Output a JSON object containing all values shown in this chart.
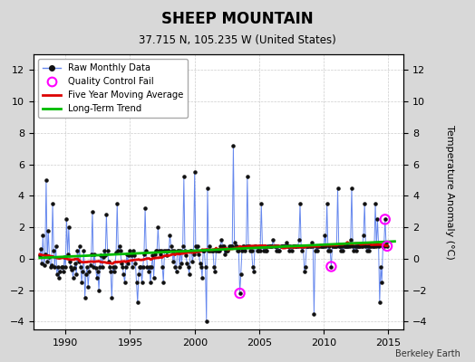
{
  "title": "SHEEP MOUNTAIN",
  "subtitle": "37.715 N, 105.235 W (United States)",
  "ylabel": "Temperature Anomaly (°C)",
  "attribution": "Berkeley Earth",
  "xlim": [
    1987.5,
    2016.2
  ],
  "ylim": [
    -4.5,
    13.0
  ],
  "yticks": [
    -4,
    -2,
    0,
    2,
    4,
    6,
    8,
    10,
    12
  ],
  "xticks": [
    1990,
    1995,
    2000,
    2005,
    2010,
    2015
  ],
  "bg_color": "#d8d8d8",
  "plot_bg_color": "#ffffff",
  "raw_line_color": "#6688ee",
  "raw_dot_color": "#111111",
  "ma_color": "#dd0000",
  "trend_color": "#00bb00",
  "qc_color": "#ff00ff",
  "raw_data": [
    [
      1988.0,
      0.2
    ],
    [
      1988.083,
      0.6
    ],
    [
      1988.167,
      -0.3
    ],
    [
      1988.25,
      1.5
    ],
    [
      1988.333,
      -0.4
    ],
    [
      1988.417,
      0.3
    ],
    [
      1988.5,
      5.0
    ],
    [
      1988.583,
      -0.2
    ],
    [
      1988.667,
      1.8
    ],
    [
      1988.75,
      0.1
    ],
    [
      1988.833,
      -0.5
    ],
    [
      1988.917,
      -0.4
    ],
    [
      1989.0,
      3.5
    ],
    [
      1989.083,
      0.5
    ],
    [
      1989.167,
      -0.5
    ],
    [
      1989.25,
      0.8
    ],
    [
      1989.333,
      -1.0
    ],
    [
      1989.417,
      -0.5
    ],
    [
      1989.5,
      -1.2
    ],
    [
      1989.583,
      -0.8
    ],
    [
      1989.667,
      -0.5
    ],
    [
      1989.75,
      -0.5
    ],
    [
      1989.833,
      -0.8
    ],
    [
      1989.917,
      0.1
    ],
    [
      1990.0,
      -0.5
    ],
    [
      1990.083,
      2.5
    ],
    [
      1990.167,
      0.3
    ],
    [
      1990.25,
      2.0
    ],
    [
      1990.333,
      -0.2
    ],
    [
      1990.417,
      -0.5
    ],
    [
      1990.5,
      -0.7
    ],
    [
      1990.583,
      -1.2
    ],
    [
      1990.667,
      -0.6
    ],
    [
      1990.75,
      -0.3
    ],
    [
      1990.833,
      -1.0
    ],
    [
      1990.917,
      0.5
    ],
    [
      1991.0,
      -0.2
    ],
    [
      1991.083,
      0.8
    ],
    [
      1991.167,
      -0.5
    ],
    [
      1991.25,
      -1.5
    ],
    [
      1991.333,
      -0.8
    ],
    [
      1991.417,
      0.5
    ],
    [
      1991.5,
      -2.5
    ],
    [
      1991.583,
      -1.0
    ],
    [
      1991.667,
      -0.5
    ],
    [
      1991.75,
      -1.8
    ],
    [
      1991.833,
      -0.8
    ],
    [
      1991.917,
      -0.4
    ],
    [
      1992.0,
      0.3
    ],
    [
      1992.083,
      3.0
    ],
    [
      1992.167,
      -0.5
    ],
    [
      1992.25,
      0.3
    ],
    [
      1992.333,
      -0.6
    ],
    [
      1992.417,
      -1.2
    ],
    [
      1992.5,
      -0.8
    ],
    [
      1992.583,
      -2.0
    ],
    [
      1992.667,
      -0.5
    ],
    [
      1992.75,
      0.2
    ],
    [
      1992.833,
      -0.5
    ],
    [
      1992.917,
      0.1
    ],
    [
      1993.0,
      0.5
    ],
    [
      1993.083,
      0.2
    ],
    [
      1993.167,
      2.8
    ],
    [
      1993.25,
      0.5
    ],
    [
      1993.333,
      -0.2
    ],
    [
      1993.417,
      -0.5
    ],
    [
      1993.5,
      -0.8
    ],
    [
      1993.583,
      -2.5
    ],
    [
      1993.667,
      -0.5
    ],
    [
      1993.75,
      -0.8
    ],
    [
      1993.833,
      -0.5
    ],
    [
      1993.917,
      0.4
    ],
    [
      1994.0,
      3.5
    ],
    [
      1994.083,
      0.5
    ],
    [
      1994.167,
      0.8
    ],
    [
      1994.25,
      0.5
    ],
    [
      1994.333,
      -0.3
    ],
    [
      1994.417,
      -0.5
    ],
    [
      1994.5,
      -1.0
    ],
    [
      1994.583,
      -1.5
    ],
    [
      1994.667,
      -0.5
    ],
    [
      1994.75,
      0.3
    ],
    [
      1994.833,
      -0.3
    ],
    [
      1994.917,
      0.2
    ],
    [
      1995.0,
      0.5
    ],
    [
      1995.083,
      0.2
    ],
    [
      1995.167,
      -0.5
    ],
    [
      1995.25,
      0.5
    ],
    [
      1995.333,
      0.2
    ],
    [
      1995.417,
      -0.3
    ],
    [
      1995.5,
      -1.5
    ],
    [
      1995.583,
      -2.8
    ],
    [
      1995.667,
      -1.0
    ],
    [
      1995.75,
      -0.5
    ],
    [
      1995.833,
      -0.5
    ],
    [
      1995.917,
      -1.5
    ],
    [
      1996.0,
      -0.5
    ],
    [
      1996.083,
      0.3
    ],
    [
      1996.167,
      3.2
    ],
    [
      1996.25,
      0.5
    ],
    [
      1996.333,
      -0.5
    ],
    [
      1996.417,
      -0.8
    ],
    [
      1996.5,
      -0.5
    ],
    [
      1996.583,
      -1.5
    ],
    [
      1996.667,
      -0.5
    ],
    [
      1996.75,
      0.2
    ],
    [
      1996.833,
      -1.2
    ],
    [
      1996.917,
      0.3
    ],
    [
      1997.0,
      0.5
    ],
    [
      1997.083,
      0.5
    ],
    [
      1997.167,
      2.0
    ],
    [
      1997.25,
      0.5
    ],
    [
      1997.333,
      0.3
    ],
    [
      1997.417,
      0.5
    ],
    [
      1997.5,
      -0.5
    ],
    [
      1997.583,
      -1.5
    ],
    [
      1997.667,
      0.5
    ],
    [
      1997.75,
      0.5
    ],
    [
      1997.833,
      0.2
    ],
    [
      1997.917,
      0.5
    ],
    [
      1998.0,
      0.5
    ],
    [
      1998.083,
      1.5
    ],
    [
      1998.167,
      0.8
    ],
    [
      1998.25,
      0.5
    ],
    [
      1998.333,
      -0.2
    ],
    [
      1998.417,
      0.5
    ],
    [
      1998.5,
      -0.5
    ],
    [
      1998.583,
      -0.8
    ],
    [
      1998.667,
      0.5
    ],
    [
      1998.75,
      0.5
    ],
    [
      1998.833,
      -0.5
    ],
    [
      1998.917,
      0.5
    ],
    [
      1999.0,
      -0.3
    ],
    [
      1999.083,
      0.8
    ],
    [
      1999.167,
      5.2
    ],
    [
      1999.25,
      0.5
    ],
    [
      1999.333,
      0.2
    ],
    [
      1999.417,
      -0.3
    ],
    [
      1999.5,
      -0.5
    ],
    [
      1999.583,
      -1.0
    ],
    [
      1999.667,
      0.5
    ],
    [
      1999.75,
      0.5
    ],
    [
      1999.833,
      -0.2
    ],
    [
      1999.917,
      0.3
    ],
    [
      2000.0,
      5.5
    ],
    [
      2000.083,
      0.8
    ],
    [
      2000.167,
      0.5
    ],
    [
      2000.25,
      0.8
    ],
    [
      2000.333,
      0.3
    ],
    [
      2000.417,
      -0.3
    ],
    [
      2000.5,
      -0.5
    ],
    [
      2000.583,
      -1.2
    ],
    [
      2000.667,
      0.5
    ],
    [
      2000.75,
      0.5
    ],
    [
      2000.833,
      -0.5
    ],
    [
      2000.917,
      -4.0
    ],
    [
      2001.0,
      4.5
    ],
    [
      2001.083,
      0.5
    ],
    [
      2001.167,
      0.8
    ],
    [
      2001.25,
      0.5
    ],
    [
      2001.333,
      0.5
    ],
    [
      2001.417,
      0.5
    ],
    [
      2001.5,
      -0.5
    ],
    [
      2001.583,
      -0.8
    ],
    [
      2001.667,
      0.5
    ],
    [
      2001.75,
      0.5
    ],
    [
      2001.833,
      0.5
    ],
    [
      2001.917,
      0.5
    ],
    [
      2002.0,
      0.8
    ],
    [
      2002.083,
      1.2
    ],
    [
      2002.167,
      0.8
    ],
    [
      2002.25,
      0.8
    ],
    [
      2002.333,
      0.3
    ],
    [
      2002.417,
      0.5
    ],
    [
      2002.5,
      0.5
    ],
    [
      2002.583,
      0.5
    ],
    [
      2002.667,
      0.8
    ],
    [
      2002.75,
      0.8
    ],
    [
      2002.833,
      0.8
    ],
    [
      2002.917,
      0.8
    ],
    [
      2003.0,
      7.2
    ],
    [
      2003.083,
      1.0
    ],
    [
      2003.167,
      0.8
    ],
    [
      2003.25,
      0.8
    ],
    [
      2003.333,
      0.5
    ],
    [
      2003.417,
      0.5
    ],
    [
      2003.5,
      -2.2
    ],
    [
      2003.583,
      -1.0
    ],
    [
      2003.667,
      0.5
    ],
    [
      2003.75,
      0.8
    ],
    [
      2003.833,
      0.8
    ],
    [
      2003.917,
      0.5
    ],
    [
      2004.0,
      0.8
    ],
    [
      2004.083,
      5.2
    ],
    [
      2004.167,
      0.8
    ],
    [
      2004.25,
      0.8
    ],
    [
      2004.333,
      0.5
    ],
    [
      2004.417,
      0.5
    ],
    [
      2004.5,
      -0.5
    ],
    [
      2004.583,
      -0.8
    ],
    [
      2004.667,
      0.8
    ],
    [
      2004.75,
      0.8
    ],
    [
      2004.833,
      0.5
    ],
    [
      2004.917,
      0.5
    ],
    [
      2005.0,
      0.8
    ],
    [
      2005.083,
      0.5
    ],
    [
      2005.167,
      3.5
    ],
    [
      2005.25,
      0.8
    ],
    [
      2005.333,
      0.5
    ],
    [
      2005.417,
      0.8
    ],
    [
      2005.5,
      0.5
    ],
    [
      2005.583,
      0.5
    ],
    [
      2005.667,
      0.8
    ],
    [
      2005.75,
      0.8
    ],
    [
      2005.833,
      0.8
    ],
    [
      2005.917,
      0.8
    ],
    [
      2006.0,
      0.8
    ],
    [
      2006.083,
      1.2
    ],
    [
      2006.167,
      0.8
    ],
    [
      2006.25,
      0.8
    ],
    [
      2006.333,
      0.5
    ],
    [
      2006.417,
      0.8
    ],
    [
      2006.5,
      0.5
    ],
    [
      2006.583,
      0.5
    ],
    [
      2006.667,
      0.8
    ],
    [
      2006.75,
      0.8
    ],
    [
      2006.833,
      0.8
    ],
    [
      2006.917,
      0.8
    ],
    [
      2007.0,
      0.8
    ],
    [
      2007.083,
      1.0
    ],
    [
      2007.167,
      0.8
    ],
    [
      2007.25,
      0.8
    ],
    [
      2007.333,
      0.5
    ],
    [
      2007.417,
      0.8
    ],
    [
      2007.5,
      0.5
    ],
    [
      2007.583,
      0.8
    ],
    [
      2007.667,
      0.8
    ],
    [
      2007.75,
      0.8
    ],
    [
      2007.833,
      0.8
    ],
    [
      2007.917,
      0.8
    ],
    [
      2008.0,
      0.8
    ],
    [
      2008.083,
      1.2
    ],
    [
      2008.167,
      3.5
    ],
    [
      2008.25,
      0.8
    ],
    [
      2008.333,
      0.5
    ],
    [
      2008.417,
      0.8
    ],
    [
      2008.5,
      -0.8
    ],
    [
      2008.583,
      -0.5
    ],
    [
      2008.667,
      0.8
    ],
    [
      2008.75,
      0.8
    ],
    [
      2008.833,
      0.8
    ],
    [
      2008.917,
      0.8
    ],
    [
      2009.0,
      0.8
    ],
    [
      2009.083,
      1.0
    ],
    [
      2009.167,
      0.8
    ],
    [
      2009.25,
      -3.5
    ],
    [
      2009.333,
      0.5
    ],
    [
      2009.417,
      0.8
    ],
    [
      2009.5,
      0.5
    ],
    [
      2009.583,
      0.8
    ],
    [
      2009.667,
      0.8
    ],
    [
      2009.75,
      0.8
    ],
    [
      2009.833,
      0.8
    ],
    [
      2009.917,
      0.8
    ],
    [
      2010.0,
      0.8
    ],
    [
      2010.083,
      1.5
    ],
    [
      2010.167,
      0.8
    ],
    [
      2010.25,
      3.5
    ],
    [
      2010.333,
      0.5
    ],
    [
      2010.417,
      0.8
    ],
    [
      2010.5,
      0.5
    ],
    [
      2010.583,
      -0.5
    ],
    [
      2010.667,
      0.8
    ],
    [
      2010.75,
      0.8
    ],
    [
      2010.833,
      0.8
    ],
    [
      2010.917,
      0.8
    ],
    [
      2011.0,
      0.8
    ],
    [
      2011.083,
      4.5
    ],
    [
      2011.167,
      0.8
    ],
    [
      2011.25,
      0.8
    ],
    [
      2011.333,
      0.5
    ],
    [
      2011.417,
      0.8
    ],
    [
      2011.5,
      0.5
    ],
    [
      2011.583,
      0.8
    ],
    [
      2011.667,
      0.8
    ],
    [
      2011.75,
      0.8
    ],
    [
      2011.833,
      0.8
    ],
    [
      2011.917,
      0.8
    ],
    [
      2012.0,
      0.8
    ],
    [
      2012.083,
      1.2
    ],
    [
      2012.167,
      4.5
    ],
    [
      2012.25,
      0.8
    ],
    [
      2012.333,
      0.5
    ],
    [
      2012.417,
      0.8
    ],
    [
      2012.5,
      0.5
    ],
    [
      2012.583,
      0.8
    ],
    [
      2012.667,
      0.8
    ],
    [
      2012.75,
      0.8
    ],
    [
      2012.833,
      0.8
    ],
    [
      2012.917,
      0.8
    ],
    [
      2013.0,
      0.8
    ],
    [
      2013.083,
      1.5
    ],
    [
      2013.167,
      3.5
    ],
    [
      2013.25,
      0.8
    ],
    [
      2013.333,
      0.5
    ],
    [
      2013.417,
      0.8
    ],
    [
      2013.5,
      0.5
    ],
    [
      2013.583,
      0.8
    ],
    [
      2013.667,
      0.8
    ],
    [
      2013.75,
      0.8
    ],
    [
      2013.833,
      0.8
    ],
    [
      2013.917,
      0.8
    ],
    [
      2014.0,
      3.5
    ],
    [
      2014.083,
      0.8
    ],
    [
      2014.167,
      2.5
    ],
    [
      2014.25,
      0.8
    ],
    [
      2014.333,
      -2.8
    ],
    [
      2014.417,
      -0.5
    ],
    [
      2014.5,
      -1.5
    ],
    [
      2014.583,
      0.8
    ],
    [
      2014.667,
      0.8
    ],
    [
      2014.75,
      2.5
    ],
    [
      2014.833,
      1.0
    ],
    [
      2014.917,
      0.8
    ]
  ],
  "qc_points": [
    [
      2003.5,
      -2.2
    ],
    [
      2010.583,
      -0.5
    ],
    [
      2014.75,
      2.5
    ],
    [
      2014.917,
      0.8
    ]
  ],
  "trend_x": [
    1988.0,
    2015.5
  ],
  "trend_y": [
    0.05,
    1.1
  ]
}
